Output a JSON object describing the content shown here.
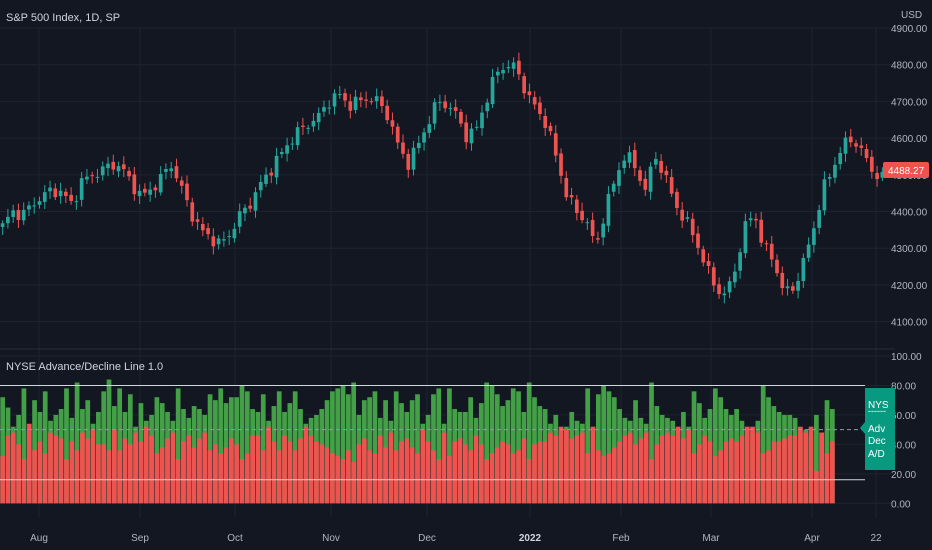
{
  "chart_data": [
    {
      "type": "candlestick",
      "title": "S&P 500 Index, 1D, SP",
      "currency": "USD",
      "last_price": "4488.27",
      "ylim": [
        4050,
        4900
      ],
      "y_ticks": [
        "4100.00",
        "4200.00",
        "4300.00",
        "4400.00",
        "4500.00",
        "4600.00",
        "4700.00",
        "4800.00",
        "4900.00"
      ],
      "grid": true,
      "colors": {
        "up": "#26a69a",
        "down": "#ef5350",
        "last_price_bg": "#ef5350"
      },
      "close_path": [
        4360,
        4400,
        4390,
        4420,
        4440,
        4460,
        4450,
        4420,
        4480,
        4500,
        4510,
        4530,
        4520,
        4480,
        4440,
        4460,
        4490,
        4530,
        4470,
        4400,
        4350,
        4330,
        4310,
        4340,
        4390,
        4420,
        4470,
        4510,
        4550,
        4590,
        4620,
        4640,
        4660,
        4700,
        4720,
        4690,
        4700,
        4710,
        4700,
        4660,
        4580,
        4530,
        4580,
        4640,
        4700,
        4690,
        4660,
        4600,
        4630,
        4710,
        4780,
        4800,
        4790,
        4720,
        4680,
        4640,
        4550,
        4450,
        4400,
        4380,
        4300,
        4410,
        4490,
        4560,
        4520,
        4460,
        4550,
        4500,
        4420,
        4380,
        4330,
        4260,
        4200,
        4170,
        4230,
        4350,
        4400,
        4300,
        4270,
        4180,
        4190,
        4260,
        4350,
        4460,
        4520,
        4580,
        4600,
        4560,
        4510,
        4490
      ]
    },
    {
      "type": "bar",
      "title": "NYSE Advance/Decline Line 1.0",
      "ylim": [
        -10,
        100
      ],
      "y_ticks": [
        "0.00",
        "20.00",
        "40.00",
        "60.00",
        "80.00",
        "100.00"
      ],
      "reference_lines": [
        50,
        16,
        80
      ],
      "legend_box_lines": [
        "NYS",
        "Adv",
        "Dec",
        "A/D"
      ],
      "colors": {
        "advances": "#43a047",
        "declines": "#ef5350",
        "legend_bg": "#089981"
      },
      "advances": [
        72,
        65,
        52,
        60,
        78,
        50,
        70,
        62,
        76,
        56,
        60,
        64,
        78,
        58,
        82,
        64,
        70,
        54,
        62,
        76,
        84,
        66,
        78,
        62,
        74,
        52,
        68,
        56,
        60,
        72,
        68,
        62,
        56,
        78,
        64,
        58,
        66,
        64,
        60,
        74,
        70,
        78,
        68,
        72,
        72,
        80,
        76,
        64,
        62,
        74,
        56,
        66,
        76,
        62,
        68,
        76,
        64,
        54,
        58,
        60,
        64,
        70,
        76,
        78,
        80,
        74,
        82,
        60,
        70,
        72,
        76,
        58,
        70,
        56,
        76,
        68,
        62,
        70,
        74,
        54,
        60,
        74,
        78,
        54,
        78,
        64,
        62,
        62,
        72,
        58,
        68,
        82,
        80,
        74,
        66,
        70,
        78,
        76,
        62,
        82,
        72,
        66,
        64,
        54,
        60,
        50,
        52,
        62,
        56,
        54,
        78,
        50,
        74,
        80,
        76,
        72,
        64,
        58,
        56,
        70,
        58,
        54,
        82,
        66,
        60,
        58,
        56,
        50,
        62,
        52,
        76,
        68,
        58,
        64,
        78,
        72,
        64,
        60,
        64,
        56,
        50,
        48,
        56,
        80,
        72,
        66,
        62,
        60,
        60,
        58,
        48,
        50,
        46,
        60,
        48,
        70,
        64
      ],
      "declines": [
        32,
        46,
        48,
        40,
        30,
        54,
        36,
        42,
        34,
        48,
        46,
        44,
        30,
        42,
        36,
        48,
        44,
        50,
        40,
        40,
        36,
        50,
        36,
        44,
        40,
        48,
        42,
        52,
        46,
        34,
        38,
        44,
        48,
        30,
        42,
        46,
        38,
        44,
        48,
        36,
        40,
        34,
        38,
        44,
        40,
        30,
        34,
        46,
        46,
        36,
        52,
        42,
        36,
        46,
        42,
        36,
        44,
        52,
        46,
        42,
        40,
        38,
        34,
        32,
        30,
        36,
        28,
        40,
        44,
        36,
        34,
        46,
        38,
        48,
        36,
        42,
        44,
        38,
        34,
        50,
        42,
        36,
        30,
        48,
        32,
        42,
        44,
        40,
        36,
        46,
        40,
        30,
        34,
        38,
        42,
        40,
        34,
        36,
        44,
        30,
        40,
        42,
        42,
        48,
        46,
        52,
        50,
        44,
        46,
        48,
        34,
        52,
        36,
        32,
        34,
        38,
        42,
        46,
        48,
        40,
        44,
        48,
        30,
        40,
        46,
        48,
        46,
        52,
        44,
        50,
        34,
        40,
        46,
        42,
        32,
        36,
        42,
        44,
        42,
        46,
        52,
        52,
        48,
        34,
        36,
        42,
        42,
        44,
        46,
        46,
        52,
        48,
        52,
        22,
        48,
        34,
        42
      ]
    }
  ],
  "x_axis_labels": [
    "Aug",
    "Sep",
    "Oct",
    "Nov",
    "Dec",
    "2022",
    "Feb",
    "Mar",
    "Apr",
    "22"
  ]
}
